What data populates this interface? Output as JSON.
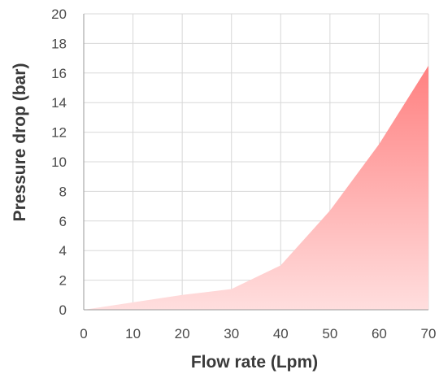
{
  "chart_data": {
    "type": "area",
    "title": "",
    "xlabel": "Flow rate (Lpm)",
    "ylabel": "Pressure drop (bar)",
    "xlim": [
      0,
      70
    ],
    "ylim": [
      0,
      20
    ],
    "x_ticks": [
      0,
      10,
      20,
      30,
      40,
      50,
      60,
      70
    ],
    "y_ticks": [
      0,
      2,
      4,
      6,
      8,
      10,
      12,
      14,
      16,
      18,
      20
    ],
    "grid": true,
    "legend": "none",
    "series": [
      {
        "x": [
          0,
          10,
          20,
          30,
          40,
          50,
          60,
          70
        ],
        "values": [
          0,
          0.5,
          1.0,
          1.4,
          3.0,
          6.7,
          11.2,
          16.5
        ],
        "color_top": "#ff8080",
        "color_bottom": "#ffdede"
      }
    ]
  }
}
